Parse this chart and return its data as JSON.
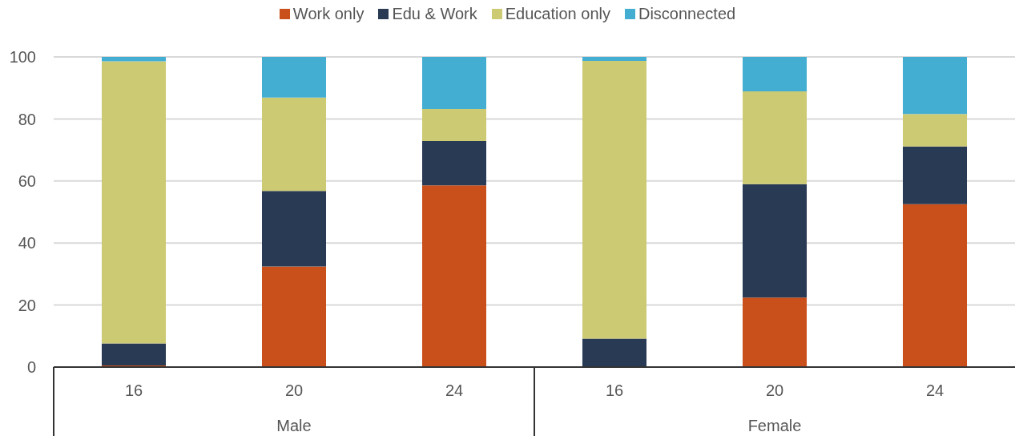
{
  "chart_data": {
    "type": "bar",
    "stacked": true,
    "categories": [
      "16",
      "20",
      "24",
      "16",
      "20",
      "24"
    ],
    "series": [
      {
        "name": "Work only",
        "color": "#c94f1b",
        "values": [
          0.5,
          32.4,
          58.6,
          0,
          22.4,
          52.5
        ]
      },
      {
        "name": "Edu & Work",
        "color": "#293a54",
        "values": [
          7.1,
          24.4,
          14.3,
          9.2,
          36.6,
          18.6
        ]
      },
      {
        "name": "Education only",
        "color": "#cdca74",
        "values": [
          91.0,
          30.1,
          10.3,
          89.5,
          29.9,
          10.5
        ]
      },
      {
        "name": "Disconnected",
        "color": "#44aed2",
        "values": [
          1.4,
          13.1,
          16.8,
          1.3,
          11.1,
          18.4
        ]
      }
    ],
    "annotations": [
      "Male",
      "Female"
    ],
    "ylim": [
      0,
      100
    ],
    "yticks": [
      0,
      20,
      40,
      60,
      80,
      100
    ],
    "grid": "y",
    "legend": "top"
  }
}
